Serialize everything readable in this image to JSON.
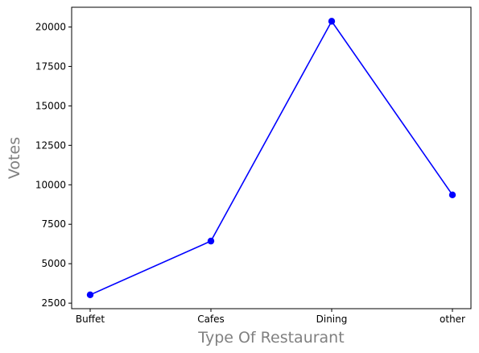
{
  "chart_data": {
    "type": "line",
    "title": "",
    "xlabel": "Type Of Restaurant",
    "ylabel": "Votes",
    "categories": [
      "Buffet",
      "Cafes",
      "Dining",
      "other"
    ],
    "series": [
      {
        "values": [
          3028,
          6434,
          20363,
          9359
        ],
        "color": "#0000ff",
        "marker": "circle"
      }
    ],
    "ylim": [
      2150,
      21250
    ],
    "yticks": [
      2500,
      5000,
      7500,
      10000,
      12500,
      15000,
      17500,
      20000
    ],
    "ytick_labels": [
      "2500",
      "5000",
      "7500",
      "10000",
      "12500",
      "15000",
      "17500",
      "20000"
    ],
    "grid": false,
    "legend": "none"
  }
}
